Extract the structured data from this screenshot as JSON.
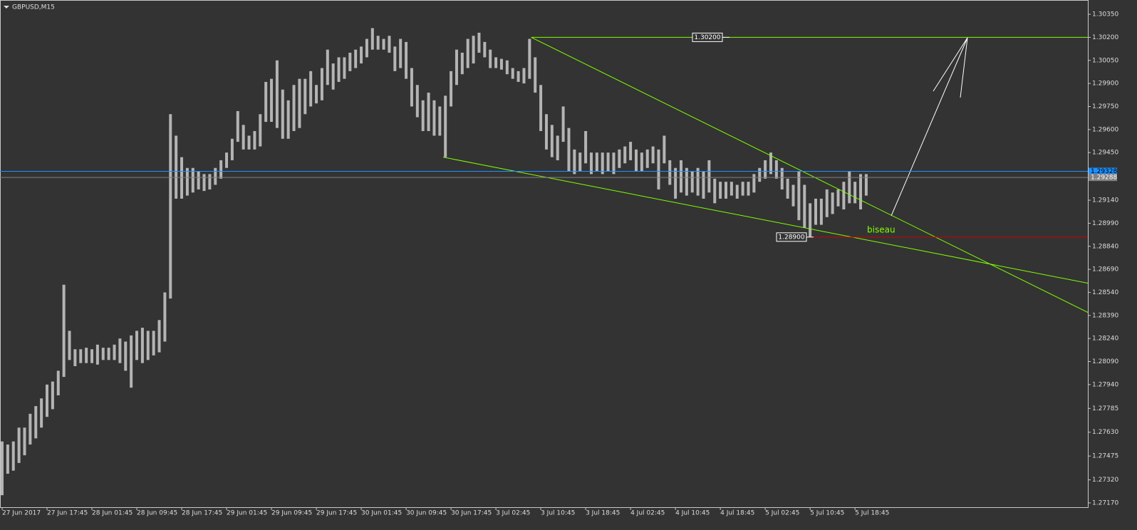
{
  "chart_data": {
    "type": "ohlc",
    "title": "GBPUSD,M15",
    "color": "#b4b4b4",
    "high": [
      1.2757,
      1.2755,
      1.2757,
      1.2766,
      1.2766,
      1.2775,
      1.278,
      1.2785,
      1.2794,
      1.2796,
      1.2803,
      1.2859,
      1.2829,
      1.2817,
      1.2817,
      1.2818,
      1.2817,
      1.282,
      1.2818,
      1.2818,
      1.282,
      1.2824,
      1.2822,
      1.2826,
      1.2829,
      1.2831,
      1.2829,
      1.2829,
      1.2836,
      1.2854,
      1.297,
      1.2956,
      1.2942,
      1.2935,
      1.2935,
      1.2933,
      1.2931,
      1.2931,
      1.2935,
      1.294,
      1.2945,
      1.2954,
      1.2972,
      1.2963,
      1.2956,
      1.2959,
      1.297,
      1.2991,
      1.2993,
      1.3005,
      1.2986,
      1.2979,
      1.2989,
      1.2993,
      1.2993,
      1.2998,
      1.2989,
      1.3,
      1.3012,
      1.3003,
      1.3007,
      1.3007,
      1.301,
      1.3012,
      1.3014,
      1.3019,
      1.3026,
      1.3021,
      1.3019,
      1.3021,
      1.3014,
      1.3019,
      1.3017,
      1.3,
      1.2989,
      1.2979,
      1.2984,
      1.2979,
      1.2975,
      1.2982,
      1.2998,
      1.3012,
      1.301,
      1.3019,
      1.3021,
      1.3023,
      1.3017,
      1.3012,
      1.3007,
      1.3006,
      1.3005,
      1.3,
      1.2998,
      1.3,
      1.3019,
      1.3007,
      1.2989,
      1.297,
      1.2963,
      1.2956,
      1.2975,
      1.2961,
      1.2947,
      1.2945,
      1.2959,
      1.2945,
      1.2945,
      1.2945,
      1.2945,
      1.2945,
      1.2947,
      1.2949,
      1.2952,
      1.2947,
      1.2945,
      1.2947,
      1.2949,
      1.2947,
      1.2956,
      1.294,
      1.2935,
      1.294,
      1.2935,
      1.2933,
      1.2935,
      1.2933,
      1.294,
      1.2928,
      1.2926,
      1.2926,
      1.2926,
      1.2924,
      1.2926,
      1.2926,
      1.2931,
      1.2935,
      1.294,
      1.2945,
      1.294,
      1.2935,
      1.2928,
      1.2924,
      1.2933,
      1.2924,
      1.2912,
      1.2915,
      1.2915,
      1.2921,
      1.2919,
      1.2921,
      1.2926,
      1.2933,
      1.2926,
      1.2931,
      1.2931
    ],
    "low": [
      1.2722,
      1.2736,
      1.2738,
      1.2743,
      1.2748,
      1.2755,
      1.2759,
      1.2766,
      1.2773,
      1.2778,
      1.2787,
      1.2799,
      1.281,
      1.2806,
      1.2808,
      1.2808,
      1.2808,
      1.2807,
      1.281,
      1.281,
      1.281,
      1.2808,
      1.2803,
      1.2792,
      1.281,
      1.2808,
      1.281,
      1.2813,
      1.2815,
      1.2822,
      1.285,
      1.2915,
      1.2915,
      1.2917,
      1.2919,
      1.2921,
      1.292,
      1.2921,
      1.2924,
      1.2928,
      1.2935,
      1.294,
      1.2952,
      1.2947,
      1.2947,
      1.2947,
      1.2949,
      1.2965,
      1.2965,
      1.2961,
      1.2954,
      1.2954,
      1.2959,
      1.2961,
      1.297,
      1.2975,
      1.2977,
      1.2979,
      1.2989,
      1.2986,
      1.2991,
      1.2993,
      1.2998,
      1.3,
      1.3003,
      1.3007,
      1.3012,
      1.3012,
      1.3012,
      1.301,
      1.2998,
      1.3,
      1.2993,
      1.2975,
      1.2968,
      1.2959,
      1.2959,
      1.2956,
      1.2956,
      1.2942,
      1.2975,
      1.2989,
      1.2996,
      1.3,
      1.3003,
      1.301,
      1.3007,
      1.3,
      1.3,
      1.2999,
      1.2996,
      1.2993,
      1.2991,
      1.299,
      1.2993,
      1.2984,
      1.2959,
      1.2947,
      1.2942,
      1.294,
      1.2952,
      1.2933,
      1.2931,
      1.2933,
      1.2938,
      1.2931,
      1.2933,
      1.2931,
      1.2933,
      1.2931,
      1.2935,
      1.2938,
      1.294,
      1.2933,
      1.2933,
      1.2935,
      1.2938,
      1.2921,
      1.2938,
      1.2924,
      1.2915,
      1.2919,
      1.2917,
      1.2919,
      1.2917,
      1.2915,
      1.2919,
      1.2912,
      1.2915,
      1.2915,
      1.2917,
      1.2915,
      1.2917,
      1.2917,
      1.2919,
      1.2926,
      1.2928,
      1.2931,
      1.2928,
      1.2921,
      1.2915,
      1.291,
      1.2901,
      1.2896,
      1.289,
      1.2898,
      1.2898,
      1.2903,
      1.2905,
      1.291,
      1.2908,
      1.2912,
      1.2912,
      1.2908,
      1.2917
    ],
    "xlim": [
      -0.38,
      193.5
    ],
    "xticks": [
      {
        "value": 0,
        "label": "27 Jun 2017"
      },
      {
        "value": 8,
        "label": "27 Jun 17:45"
      },
      {
        "value": 16,
        "label": "28 Jun 01:45"
      },
      {
        "value": 24,
        "label": "28 Jun 09:45"
      },
      {
        "value": 32,
        "label": "28 Jun 17:45"
      },
      {
        "value": 40,
        "label": "29 Jun 01:45"
      },
      {
        "value": 48,
        "label": "29 Jun 09:45"
      },
      {
        "value": 56,
        "label": "29 Jun 17:45"
      },
      {
        "value": 64,
        "label": "30 Jun 01:45"
      },
      {
        "value": 72,
        "label": "30 Jun 09:45"
      },
      {
        "value": 80,
        "label": "30 Jun 17:45"
      },
      {
        "value": 88,
        "label": "3 Jul 02:45"
      },
      {
        "value": 96,
        "label": "3 Jul 10:45"
      },
      {
        "value": 104,
        "label": "3 Jul 18:45"
      },
      {
        "value": 112,
        "label": "4 Jul 02:45"
      },
      {
        "value": 120,
        "label": "4 Jul 10:45"
      },
      {
        "value": 128,
        "label": "4 Jul 18:45"
      },
      {
        "value": 136,
        "label": "5 Jul 02:45"
      },
      {
        "value": 144,
        "label": "5 Jul 10:45"
      },
      {
        "value": 152,
        "label": "5 Jul 18:45"
      }
    ],
    "ylim": [
      1.27142,
      1.30443
    ],
    "yticks": [
      {
        "value": 1.3035,
        "label": "1.30350"
      },
      {
        "value": 1.302,
        "label": "1.30200"
      },
      {
        "value": 1.3005,
        "label": "1.30050"
      },
      {
        "value": 1.299,
        "label": "1.29900"
      },
      {
        "value": 1.2975,
        "label": "1.29750"
      },
      {
        "value": 1.296,
        "label": "1.29600"
      },
      {
        "value": 1.2945,
        "label": "1.29450"
      },
      {
        "value": 1.2914,
        "label": "1.29140"
      },
      {
        "value": 1.2899,
        "label": "1.28990"
      },
      {
        "value": 1.2884,
        "label": "1.28840"
      },
      {
        "value": 1.2869,
        "label": "1.28690"
      },
      {
        "value": 1.2854,
        "label": "1.28540"
      },
      {
        "value": 1.2839,
        "label": "1.28390"
      },
      {
        "value": 1.2824,
        "label": "1.28240"
      },
      {
        "value": 1.2809,
        "label": "1.28090"
      },
      {
        "value": 1.2794,
        "label": "1.27940"
      },
      {
        "value": 1.27785,
        "label": "1.27785"
      },
      {
        "value": 1.2763,
        "label": "1.27630"
      },
      {
        "value": 1.27475,
        "label": "1.27475"
      },
      {
        "value": 1.2732,
        "label": "1.27320"
      },
      {
        "value": 1.2717,
        "label": "1.27170"
      }
    ],
    "price_lines": [
      {
        "value": 1.29328,
        "color": "#1e90ff"
      },
      {
        "value": 1.29288,
        "color": "#808080"
      }
    ],
    "levels": [
      {
        "value": 1.302,
        "label": "1.30200",
        "color": "#7fff00"
      },
      {
        "value": 1.289,
        "label": "1.28900",
        "color": "#d00000"
      }
    ],
    "trendlines": [
      {
        "x": [
          94.3,
          193.5
        ],
        "y": [
          1.302,
          1.2841
        ],
        "color": "#7fff00"
      },
      {
        "x": [
          78.6,
          193.5
        ],
        "y": [
          1.2942,
          1.286
        ],
        "color": "#7fff00"
      }
    ],
    "annotation": {
      "text": "biseau",
      "color": "#7fff00"
    }
  }
}
